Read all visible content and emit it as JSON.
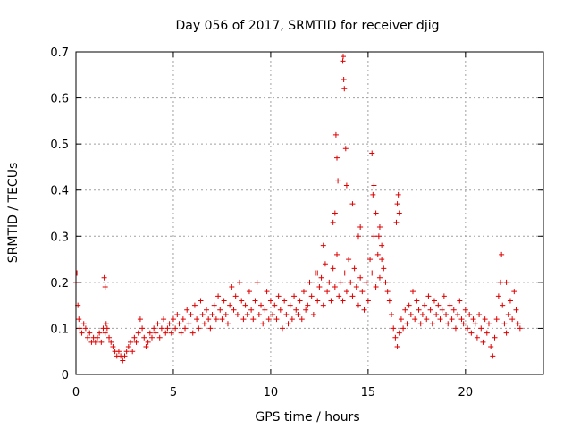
{
  "chart_data": {
    "type": "scatter",
    "title": "Day 056 of 2017, SRMTID for receiver djig",
    "xlabel": "GPS time / hours",
    "ylabel": "SRMTID / TECUs",
    "xlim": [
      0,
      24
    ],
    "ylim": [
      0,
      0.7
    ],
    "grid": true,
    "x_ticks": [
      0,
      5,
      10,
      15,
      20
    ],
    "x_tick_labels": [
      "0",
      "5",
      "10",
      "15",
      "20"
    ],
    "y_ticks": [
      0,
      0.1,
      0.2,
      0.3,
      0.4,
      0.5,
      0.6,
      0.7
    ],
    "y_tick_labels": [
      "0",
      "0.1",
      "0.2",
      "0.3",
      "0.4",
      "0.5",
      "0.6",
      "0.7"
    ],
    "marker": "plus",
    "color": "#e00000",
    "series": [
      {
        "name": "SRMTID",
        "x": [
          0.0,
          0.05,
          0.1,
          0.15,
          0.2,
          0.3,
          0.4,
          0.5,
          0.6,
          0.7,
          0.8,
          0.9,
          1.0,
          1.1,
          1.2,
          1.3,
          1.4,
          1.5,
          1.55,
          1.6,
          1.7,
          1.8,
          1.9,
          2.0,
          2.1,
          2.2,
          2.3,
          2.4,
          2.5,
          2.6,
          2.7,
          2.8,
          2.9,
          3.0,
          3.1,
          3.2,
          3.3,
          3.4,
          3.5,
          3.6,
          3.7,
          3.8,
          3.9,
          4.0,
          4.1,
          4.2,
          4.3,
          4.4,
          4.5,
          4.6,
          4.7,
          4.8,
          4.9,
          5.0,
          5.1,
          5.2,
          5.3,
          5.4,
          5.5,
          5.6,
          5.7,
          5.8,
          5.9,
          6.0,
          6.1,
          6.2,
          6.3,
          6.4,
          6.5,
          6.6,
          6.7,
          6.8,
          6.9,
          7.0,
          7.1,
          7.2,
          7.3,
          7.4,
          7.5,
          7.6,
          7.7,
          7.8,
          7.9,
          8.0,
          8.1,
          8.2,
          8.3,
          8.4,
          8.5,
          8.6,
          8.7,
          8.8,
          8.9,
          9.0,
          9.1,
          9.2,
          9.3,
          9.4,
          9.5,
          9.6,
          9.7,
          9.8,
          9.9,
          10.0,
          10.1,
          10.2,
          10.3,
          10.4,
          10.5,
          10.6,
          10.7,
          10.8,
          10.9,
          11.0,
          11.1,
          11.2,
          11.3,
          11.4,
          11.5,
          11.6,
          11.7,
          11.8,
          11.9,
          12.0,
          12.1,
          12.2,
          12.3,
          12.4,
          12.5,
          12.6,
          12.7,
          12.8,
          12.9,
          13.0,
          13.1,
          13.2,
          13.3,
          13.4,
          13.5,
          13.6,
          13.7,
          13.8,
          13.9,
          14.0,
          14.1,
          14.2,
          14.3,
          14.4,
          14.5,
          14.6,
          14.7,
          14.8,
          14.9,
          15.0,
          15.1,
          15.2,
          15.3,
          15.4,
          15.5,
          15.6,
          15.7,
          15.8,
          15.9,
          16.0,
          16.1,
          16.2,
          16.3,
          16.4,
          16.5,
          16.6,
          16.7,
          16.8,
          16.9,
          17.0,
          17.1,
          17.2,
          17.3,
          17.4,
          17.5,
          17.6,
          17.7,
          17.8,
          17.9,
          18.0,
          18.1,
          18.2,
          18.3,
          18.4,
          18.5,
          18.6,
          18.7,
          18.8,
          18.9,
          19.0,
          19.1,
          19.2,
          19.3,
          19.4,
          19.5,
          19.6,
          19.7,
          19.8,
          19.9,
          20.0,
          20.1,
          20.2,
          20.3,
          20.4,
          20.5,
          20.6,
          20.7,
          20.8,
          20.9,
          21.0,
          21.1,
          21.2,
          21.3,
          21.4,
          21.5,
          21.6,
          21.7,
          21.8,
          21.9,
          22.0,
          22.1,
          22.2,
          22.3,
          22.4,
          22.5,
          22.6,
          22.7,
          22.8,
          13.35,
          13.4,
          13.45,
          13.7,
          13.72,
          13.75,
          13.78,
          13.3,
          13.85,
          13.9,
          14.6,
          15.2,
          15.25,
          15.3,
          15.4,
          15.55,
          15.6,
          15.7,
          16.45,
          16.5,
          16.55,
          16.6,
          21.85,
          22.1,
          12.4,
          12.7,
          13.2,
          14.2,
          14.5,
          1.45,
          1.5
        ],
        "y": [
          0.2,
          0.22,
          0.15,
          0.12,
          0.1,
          0.09,
          0.11,
          0.1,
          0.08,
          0.09,
          0.07,
          0.08,
          0.07,
          0.08,
          0.09,
          0.07,
          0.1,
          0.09,
          0.11,
          0.1,
          0.08,
          0.07,
          0.06,
          0.05,
          0.04,
          0.05,
          0.04,
          0.03,
          0.04,
          0.05,
          0.06,
          0.07,
          0.05,
          0.08,
          0.07,
          0.09,
          0.12,
          0.1,
          0.08,
          0.06,
          0.07,
          0.09,
          0.08,
          0.1,
          0.09,
          0.11,
          0.08,
          0.1,
          0.12,
          0.09,
          0.1,
          0.11,
          0.09,
          0.12,
          0.1,
          0.13,
          0.11,
          0.09,
          0.12,
          0.1,
          0.14,
          0.11,
          0.13,
          0.09,
          0.15,
          0.12,
          0.1,
          0.16,
          0.13,
          0.11,
          0.14,
          0.12,
          0.1,
          0.13,
          0.15,
          0.12,
          0.17,
          0.14,
          0.12,
          0.16,
          0.13,
          0.11,
          0.15,
          0.19,
          0.14,
          0.17,
          0.13,
          0.2,
          0.16,
          0.12,
          0.15,
          0.13,
          0.18,
          0.14,
          0.12,
          0.16,
          0.2,
          0.13,
          0.15,
          0.11,
          0.14,
          0.18,
          0.12,
          0.16,
          0.13,
          0.15,
          0.12,
          0.17,
          0.14,
          0.1,
          0.16,
          0.13,
          0.11,
          0.15,
          0.12,
          0.17,
          0.14,
          0.13,
          0.16,
          0.12,
          0.18,
          0.14,
          0.15,
          0.2,
          0.17,
          0.13,
          0.22,
          0.16,
          0.19,
          0.21,
          0.15,
          0.24,
          0.18,
          0.2,
          0.16,
          0.23,
          0.19,
          0.26,
          0.17,
          0.2,
          0.16,
          0.22,
          0.18,
          0.25,
          0.2,
          0.17,
          0.23,
          0.19,
          0.15,
          0.21,
          0.18,
          0.14,
          0.2,
          0.16,
          0.25,
          0.22,
          0.3,
          0.19,
          0.26,
          0.21,
          0.28,
          0.23,
          0.2,
          0.18,
          0.16,
          0.13,
          0.1,
          0.08,
          0.06,
          0.09,
          0.12,
          0.1,
          0.14,
          0.11,
          0.15,
          0.13,
          0.18,
          0.12,
          0.16,
          0.14,
          0.11,
          0.13,
          0.15,
          0.12,
          0.17,
          0.14,
          0.11,
          0.16,
          0.13,
          0.15,
          0.12,
          0.14,
          0.17,
          0.13,
          0.11,
          0.15,
          0.12,
          0.14,
          0.1,
          0.13,
          0.16,
          0.12,
          0.11,
          0.14,
          0.1,
          0.13,
          0.09,
          0.12,
          0.11,
          0.08,
          0.13,
          0.1,
          0.07,
          0.12,
          0.09,
          0.11,
          0.06,
          0.04,
          0.08,
          0.12,
          0.17,
          0.2,
          0.15,
          0.11,
          0.09,
          0.13,
          0.16,
          0.12,
          0.18,
          0.14,
          0.11,
          0.1,
          0.52,
          0.47,
          0.42,
          0.68,
          0.69,
          0.64,
          0.62,
          0.35,
          0.49,
          0.41,
          0.32,
          0.48,
          0.39,
          0.41,
          0.35,
          0.3,
          0.32,
          0.25,
          0.33,
          0.37,
          0.39,
          0.35,
          0.26,
          0.2,
          0.22,
          0.28,
          0.33,
          0.37,
          0.3,
          0.21,
          0.19
        ]
      }
    ]
  }
}
